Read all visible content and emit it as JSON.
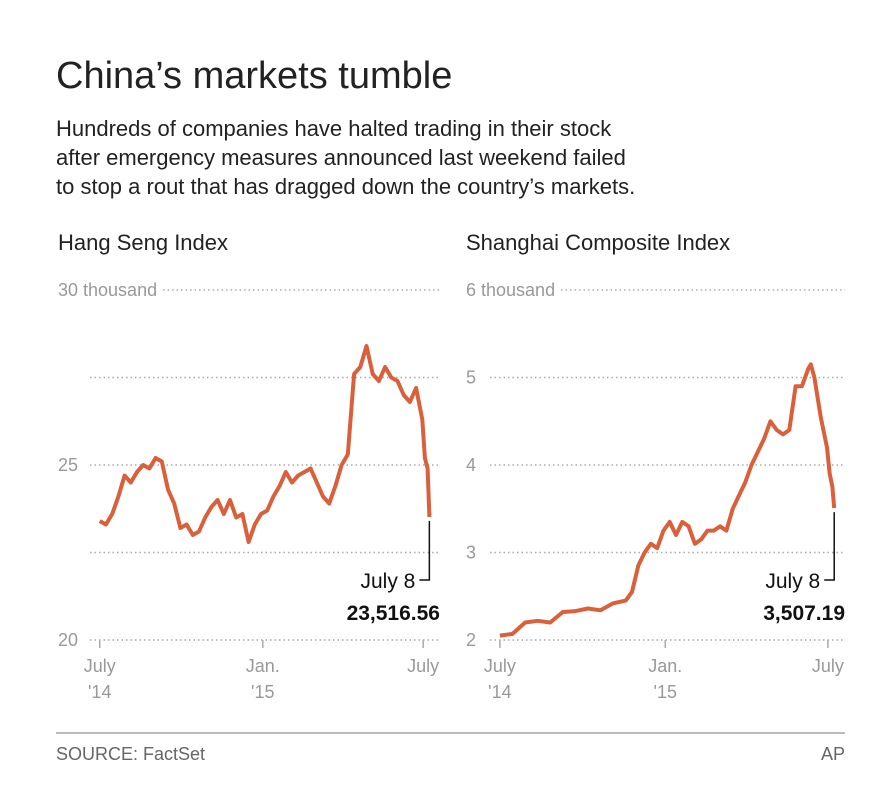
{
  "title": "China’s markets tumble",
  "subtitle": [
    "Hundreds of companies have halted trading in their stock",
    "after emergency measures announced last weekend failed",
    "to stop a rout that has dragged down the country’s markets."
  ],
  "source": "SOURCE: FactSet",
  "credit": "AP",
  "chart_data": [
    {
      "type": "line",
      "title": "Hang Seng Index",
      "color": "#d9603b",
      "grid": true,
      "x": [
        "2014-07-01",
        "2014-07-08",
        "2014-07-15",
        "2014-07-22",
        "2014-07-29",
        "2014-08-05",
        "2014-08-12",
        "2014-08-19",
        "2014-08-26",
        "2014-09-02",
        "2014-09-09",
        "2014-09-16",
        "2014-09-23",
        "2014-09-30",
        "2014-10-07",
        "2014-10-14",
        "2014-10-21",
        "2014-10-28",
        "2014-11-04",
        "2014-11-11",
        "2014-11-18",
        "2014-11-25",
        "2014-12-02",
        "2014-12-09",
        "2014-12-16",
        "2014-12-23",
        "2014-12-30",
        "2015-01-06",
        "2015-01-13",
        "2015-01-20",
        "2015-01-27",
        "2015-02-03",
        "2015-02-10",
        "2015-02-17",
        "2015-02-24",
        "2015-03-03",
        "2015-03-10",
        "2015-03-17",
        "2015-03-24",
        "2015-03-31",
        "2015-04-07",
        "2015-04-14",
        "2015-04-21",
        "2015-04-28",
        "2015-05-05",
        "2015-05-12",
        "2015-05-19",
        "2015-05-26",
        "2015-06-02",
        "2015-06-09",
        "2015-06-16",
        "2015-06-23",
        "2015-06-30",
        "2015-07-03",
        "2015-07-06",
        "2015-07-08"
      ],
      "values": [
        23.4,
        23.3,
        23.6,
        24.1,
        24.7,
        24.5,
        24.8,
        25.0,
        24.9,
        25.2,
        25.1,
        24.3,
        23.9,
        23.2,
        23.3,
        23.0,
        23.1,
        23.5,
        23.8,
        24.0,
        23.6,
        24.0,
        23.5,
        23.6,
        22.8,
        23.3,
        23.6,
        23.7,
        24.1,
        24.4,
        24.8,
        24.5,
        24.7,
        24.8,
        24.9,
        24.5,
        24.1,
        23.9,
        24.4,
        25.0,
        25.3,
        27.6,
        27.8,
        28.4,
        27.6,
        27.4,
        27.8,
        27.5,
        27.4,
        27.0,
        26.8,
        27.2,
        26.3,
        25.2,
        24.9,
        23.51656
      ],
      "ylim": [
        20,
        30
      ],
      "yticks": [
        20,
        25,
        {
          "value": 30,
          "label": "30 thousand"
        }
      ],
      "yminor": [
        22.5,
        27.5
      ],
      "xlim": [
        "2014-06-20",
        "2015-07-20"
      ],
      "xticks": [
        {
          "value": "2014-07-01",
          "label": "July",
          "year": "'14"
        },
        {
          "value": "2015-01-01",
          "label": "Jan.",
          "year": "'15"
        },
        {
          "value": "2015-07-01",
          "label": "July"
        }
      ],
      "annotation": {
        "date_label": "July 8",
        "value_label": "23,516.56"
      }
    },
    {
      "type": "line",
      "title": "Shanghai Composite Index",
      "color": "#d9603b",
      "grid": true,
      "x": [
        "2014-07-01",
        "2014-07-15",
        "2014-07-29",
        "2014-08-12",
        "2014-08-26",
        "2014-09-09",
        "2014-09-23",
        "2014-10-07",
        "2014-10-21",
        "2014-11-04",
        "2014-11-18",
        "2014-11-25",
        "2014-12-02",
        "2014-12-09",
        "2014-12-16",
        "2014-12-23",
        "2014-12-30",
        "2015-01-06",
        "2015-01-13",
        "2015-01-20",
        "2015-01-27",
        "2015-02-03",
        "2015-02-10",
        "2015-02-17",
        "2015-02-24",
        "2015-03-03",
        "2015-03-10",
        "2015-03-17",
        "2015-03-24",
        "2015-03-31",
        "2015-04-07",
        "2015-04-14",
        "2015-04-21",
        "2015-04-28",
        "2015-05-05",
        "2015-05-12",
        "2015-05-19",
        "2015-05-26",
        "2015-06-02",
        "2015-06-09",
        "2015-06-12",
        "2015-06-16",
        "2015-06-23",
        "2015-06-30",
        "2015-07-03",
        "2015-07-06",
        "2015-07-08"
      ],
      "values": [
        2.05,
        2.07,
        2.2,
        2.22,
        2.2,
        2.32,
        2.33,
        2.36,
        2.34,
        2.42,
        2.45,
        2.55,
        2.85,
        3.0,
        3.1,
        3.05,
        3.25,
        3.35,
        3.2,
        3.35,
        3.3,
        3.1,
        3.15,
        3.25,
        3.25,
        3.3,
        3.25,
        3.5,
        3.65,
        3.8,
        4.0,
        4.15,
        4.3,
        4.5,
        4.4,
        4.35,
        4.4,
        4.9,
        4.9,
        5.1,
        5.15,
        5.0,
        4.55,
        4.2,
        3.9,
        3.75,
        3.50719
      ],
      "ylim": [
        2,
        6
      ],
      "yticks": [
        2,
        3,
        4,
        5,
        {
          "value": 6,
          "label": "6 thousand"
        }
      ],
      "xlim": [
        "2014-06-20",
        "2015-07-20"
      ],
      "xticks": [
        {
          "value": "2014-07-01",
          "label": "July",
          "year": "'14"
        },
        {
          "value": "2015-01-01",
          "label": "Jan.",
          "year": "'15"
        },
        {
          "value": "2015-07-01",
          "label": "July"
        }
      ],
      "annotation": {
        "date_label": "July 8",
        "value_label": "3,507.19"
      }
    }
  ]
}
